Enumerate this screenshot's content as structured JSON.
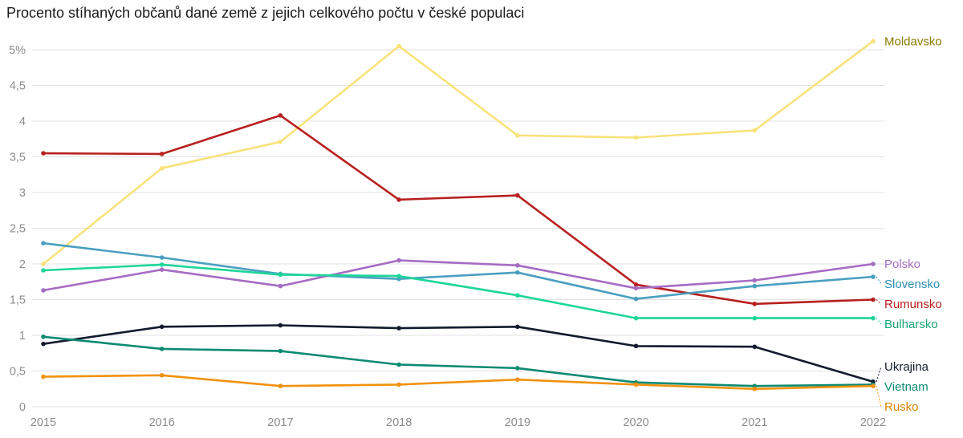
{
  "chart_data": {
    "type": "line",
    "title": "Procento stíhaných občanů dané země z jejich celkového počtu v české populaci",
    "xlabel": "",
    "ylabel": "",
    "x": [
      "2015",
      "2016",
      "2017",
      "2018",
      "2019",
      "2020",
      "2021",
      "2022"
    ],
    "ylim": [
      0,
      5
    ],
    "yticks": [
      0,
      0.5,
      1,
      1.5,
      2,
      2.5,
      3,
      3.5,
      4,
      4.5,
      5
    ],
    "ytick_labels": [
      "0",
      "0,5",
      "1",
      "1,5",
      "2",
      "2,5",
      "3",
      "3,5",
      "4",
      "4,5",
      "5%"
    ],
    "grid": true,
    "legend": "direct labels at line ends (right)",
    "series": [
      {
        "name": "Moldavsko",
        "color": "#f8e27a",
        "label_color": "#8a7a00",
        "values": [
          2.0,
          3.34,
          3.71,
          5.05,
          3.8,
          3.77,
          3.87,
          5.12
        ]
      },
      {
        "name": "Rumunsko",
        "color": "#b8201f",
        "label_color": "#b8201f",
        "values": [
          3.55,
          3.54,
          4.08,
          2.9,
          2.96,
          1.71,
          1.44,
          1.5
        ]
      },
      {
        "name": "Slovensko",
        "color": "#4a9fc0",
        "label_color": "#2e8fb0",
        "values": [
          2.29,
          2.09,
          1.86,
          1.79,
          1.88,
          1.51,
          1.69,
          1.82
        ]
      },
      {
        "name": "Polsko",
        "color": "#a56cc4",
        "label_color": "#a56cc4",
        "values": [
          1.63,
          1.92,
          1.69,
          2.05,
          1.98,
          1.66,
          1.77,
          2.0
        ]
      },
      {
        "name": "Bulharsko",
        "color": "#1ed69a",
        "label_color": "#17a673",
        "values": [
          1.91,
          1.99,
          1.85,
          1.83,
          1.56,
          1.24,
          1.24,
          1.24
        ]
      },
      {
        "name": "Ukrajina",
        "color": "#141a2e",
        "label_color": "#141a2e",
        "values": [
          0.88,
          1.12,
          1.14,
          1.1,
          1.12,
          0.85,
          0.84,
          0.35
        ]
      },
      {
        "name": "Vietnam",
        "color": "#0d8a73",
        "label_color": "#0d8a73",
        "values": [
          0.98,
          0.81,
          0.78,
          0.59,
          0.54,
          0.34,
          0.29,
          0.31
        ]
      },
      {
        "name": "Rusko",
        "color": "#f0920e",
        "label_color": "#d98208",
        "values": [
          0.42,
          0.44,
          0.29,
          0.31,
          0.38,
          0.31,
          0.25,
          0.29
        ]
      }
    ]
  }
}
